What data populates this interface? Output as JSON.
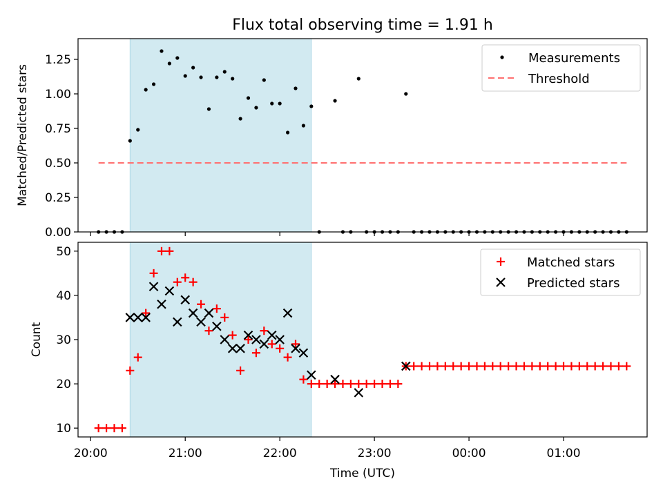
{
  "title": "Flux total observing time = 1.91 h",
  "colors": {
    "observing_span": "#add8e6",
    "measurement": "#000000",
    "threshold": "#ff6f6f",
    "matched": "#ff0000",
    "predicted": "#000000"
  },
  "chart_data": [
    {
      "type": "scatter",
      "xlabel": "",
      "ylabel": "Matched/Predicted stars",
      "x_range": [
        "20:00",
        "01:45"
      ],
      "ylim": [
        0,
        1.4
      ],
      "y_ticks": [
        "0.00",
        "0.25",
        "0.50",
        "0.75",
        "1.00",
        "1.25"
      ],
      "x_tick_labels_shown": false,
      "legend_position": "top-right",
      "shaded_span": [
        "20:25",
        "22:20"
      ],
      "threshold": {
        "name": "Threshold",
        "y": 0.5,
        "x": [
          "20:05",
          "01:40"
        ],
        "style": "dashed"
      },
      "series": [
        {
          "name": "Measurements",
          "marker": "dot",
          "x": [
            "20:05",
            "20:10",
            "20:15",
            "20:20",
            "20:25",
            "20:30",
            "20:35",
            "20:40",
            "20:45",
            "20:50",
            "20:55",
            "21:00",
            "21:05",
            "21:10",
            "21:15",
            "21:20",
            "21:25",
            "21:30",
            "21:35",
            "21:40",
            "21:45",
            "21:50",
            "21:55",
            "22:00",
            "22:05",
            "22:10",
            "22:15",
            "22:20",
            "22:25",
            "22:35",
            "22:40",
            "22:45",
            "22:50",
            "22:55",
            "23:00",
            "23:05",
            "23:10",
            "23:15",
            "23:20",
            "23:25",
            "23:30",
            "23:35",
            "23:40",
            "23:45",
            "23:50",
            "23:55",
            "00:00",
            "00:05",
            "00:10",
            "00:15",
            "00:20",
            "00:25",
            "00:30",
            "00:35",
            "00:40",
            "00:45",
            "00:50",
            "00:55",
            "01:00",
            "01:05",
            "01:10",
            "01:15",
            "01:20",
            "01:25",
            "01:30",
            "01:35",
            "01:40"
          ],
          "y": [
            0,
            0,
            0,
            0,
            0.66,
            0.74,
            1.03,
            1.07,
            1.31,
            1.22,
            1.26,
            1.13,
            1.19,
            1.12,
            0.89,
            1.12,
            1.16,
            1.11,
            0.82,
            0.97,
            0.9,
            1.1,
            0.93,
            0.93,
            0.72,
            1.04,
            0.77,
            0.91,
            0,
            0.95,
            0,
            0,
            1.11,
            0,
            0,
            0,
            0,
            0,
            1.0,
            0,
            0,
            0,
            0,
            0,
            0,
            0,
            0,
            0,
            0,
            0,
            0,
            0,
            0,
            0,
            0,
            0,
            0,
            0,
            0,
            0,
            0,
            0,
            0,
            0,
            0,
            0,
            0
          ]
        }
      ]
    },
    {
      "type": "scatter",
      "xlabel": "Time (UTC)",
      "ylabel": "Count",
      "x_range": [
        "20:00",
        "01:45"
      ],
      "ylim": [
        8,
        52
      ],
      "y_ticks": [
        "10",
        "20",
        "30",
        "40",
        "50"
      ],
      "x_ticks": [
        "20:00",
        "21:00",
        "22:00",
        "23:00",
        "00:00",
        "01:00"
      ],
      "legend_position": "top-right",
      "shaded_span": [
        "20:25",
        "22:20"
      ],
      "series": [
        {
          "name": "Matched stars",
          "marker": "plus",
          "x": [
            "20:05",
            "20:10",
            "20:15",
            "20:20",
            "20:25",
            "20:30",
            "20:35",
            "20:40",
            "20:45",
            "20:50",
            "20:55",
            "21:00",
            "21:05",
            "21:10",
            "21:15",
            "21:20",
            "21:25",
            "21:30",
            "21:35",
            "21:40",
            "21:45",
            "21:50",
            "21:55",
            "22:00",
            "22:05",
            "22:10",
            "22:15",
            "22:20",
            "22:25",
            "22:30",
            "22:35",
            "22:40",
            "22:45",
            "22:50",
            "22:55",
            "23:00",
            "23:05",
            "23:10",
            "23:15",
            "23:20",
            "23:25",
            "23:30",
            "23:35",
            "23:40",
            "23:45",
            "23:50",
            "23:55",
            "00:00",
            "00:05",
            "00:10",
            "00:15",
            "00:20",
            "00:25",
            "00:30",
            "00:35",
            "00:40",
            "00:45",
            "00:50",
            "00:55",
            "01:00",
            "01:05",
            "01:10",
            "01:15",
            "01:20",
            "01:25",
            "01:30",
            "01:35",
            "01:40"
          ],
          "y": [
            10,
            10,
            10,
            10,
            23,
            26,
            36,
            45,
            50,
            50,
            43,
            44,
            43,
            38,
            32,
            37,
            35,
            31,
            23,
            30,
            27,
            32,
            29,
            28,
            26,
            29,
            21,
            20,
            20,
            20,
            20,
            20,
            20,
            20,
            20,
            20,
            20,
            20,
            20,
            24,
            24,
            24,
            24,
            24,
            24,
            24,
            24,
            24,
            24,
            24,
            24,
            24,
            24,
            24,
            24,
            24,
            24,
            24,
            24,
            24,
            24,
            24,
            24,
            24,
            24,
            24,
            24,
            24
          ]
        },
        {
          "name": "Predicted stars",
          "marker": "x",
          "x": [
            "20:25",
            "20:30",
            "20:35",
            "20:40",
            "20:45",
            "20:50",
            "20:55",
            "21:00",
            "21:05",
            "21:10",
            "21:15",
            "21:20",
            "21:25",
            "21:30",
            "21:35",
            "21:40",
            "21:45",
            "21:50",
            "21:55",
            "22:00",
            "22:05",
            "22:10",
            "22:15",
            "22:20",
            "22:35",
            "22:50",
            "23:20"
          ],
          "y": [
            35,
            35,
            35,
            42,
            38,
            41,
            34,
            39,
            36,
            34,
            36,
            33,
            30,
            28,
            28,
            31,
            30,
            29,
            31,
            30,
            36,
            28,
            27,
            22,
            21,
            18,
            24
          ]
        }
      ]
    }
  ]
}
